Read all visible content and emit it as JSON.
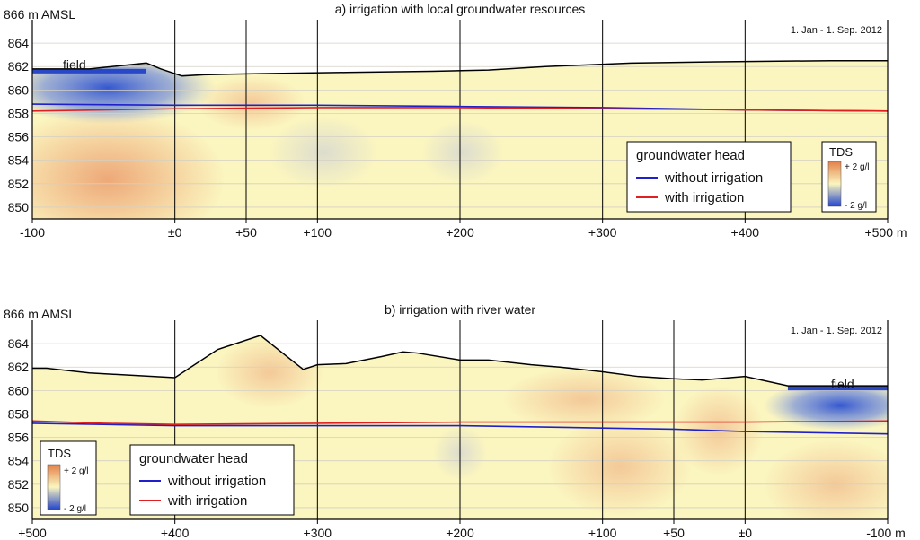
{
  "chart_data": [
    {
      "type": "line",
      "title": "a) irrigation with local groundwater resources",
      "ylabel": "866 m AMSL",
      "xunit": "m",
      "xlim": [
        -100,
        500
      ],
      "ylim": [
        849,
        866
      ],
      "y_ticks": [
        "864",
        "862",
        "860",
        "858",
        "856",
        "854",
        "852",
        "850"
      ],
      "y_tick_values": [
        864,
        862,
        860,
        858,
        856,
        854,
        852,
        850
      ],
      "x_ticks": [
        "-100",
        "±0",
        "+50",
        "+100",
        "+200",
        "+300",
        "+400",
        "+500 m"
      ],
      "x_tick_values": [
        -100,
        0,
        50,
        100,
        200,
        300,
        400,
        500
      ],
      "date_range": "1. Jan - 1. Sep. 2012",
      "field_label": "field",
      "field_x": [
        -100,
        -20
      ],
      "series": [
        {
          "name": "ground surface",
          "color": "#000000",
          "x": [
            -100,
            -60,
            -20,
            -10,
            5,
            20,
            60,
            120,
            180,
            220,
            260,
            320,
            380,
            460,
            500
          ],
          "y": [
            861.8,
            861.8,
            862.3,
            861.8,
            861.2,
            861.3,
            861.4,
            861.5,
            861.6,
            861.7,
            862.0,
            862.3,
            862.4,
            862.5,
            862.5
          ]
        },
        {
          "name": "without irrigation",
          "color": "#1f1fcc",
          "x": [
            -100,
            0,
            100,
            200,
            300,
            400,
            500
          ],
          "y": [
            858.8,
            858.7,
            858.7,
            858.6,
            858.5,
            858.3,
            858.2
          ]
        },
        {
          "name": "with irrigation",
          "color": "#e02020",
          "x": [
            -100,
            0,
            100,
            200,
            300,
            400,
            500
          ],
          "y": [
            858.2,
            858.4,
            858.5,
            858.5,
            858.4,
            858.3,
            858.2
          ]
        }
      ],
      "legend": {
        "title": "groundwater head",
        "entries": [
          "without irrigation",
          "with irrigation"
        ],
        "placement": "bottom-right"
      },
      "colorbar": {
        "title": "TDS",
        "max_label": "+ 2 g/l",
        "min_label": "- 2 g/l",
        "high_color": "#e48048",
        "mid_color": "#fbf5bf",
        "low_color": "#2244cc"
      }
    },
    {
      "type": "line",
      "title": "b) irrigation with river water",
      "ylabel": "866 m AMSL",
      "xunit": "m",
      "xlim": [
        500,
        -100
      ],
      "ylim": [
        849,
        866
      ],
      "y_ticks": [
        "864",
        "862",
        "860",
        "858",
        "856",
        "854",
        "852",
        "850"
      ],
      "y_tick_values": [
        864,
        862,
        860,
        858,
        856,
        854,
        852,
        850
      ],
      "x_ticks": [
        "+500",
        "+400",
        "+300",
        "+200",
        "+100",
        "+50",
        "±0",
        "-100 m"
      ],
      "x_tick_values": [
        500,
        400,
        300,
        200,
        100,
        50,
        0,
        -100
      ],
      "date_range": "1. Jan - 1. Sep. 2012",
      "field_label": "field",
      "field_x": [
        -30,
        -100
      ],
      "series": [
        {
          "name": "ground surface",
          "color": "#000000",
          "x": [
            500,
            490,
            460,
            400,
            370,
            340,
            310,
            300,
            280,
            255,
            240,
            230,
            200,
            180,
            150,
            130,
            100,
            75,
            50,
            30,
            0,
            -30,
            -100
          ],
          "y": [
            861.9,
            861.9,
            861.5,
            861.1,
            863.5,
            864.7,
            861.8,
            862.2,
            862.3,
            862.9,
            863.3,
            863.2,
            862.6,
            862.6,
            862.2,
            862.0,
            861.6,
            861.2,
            861.0,
            860.9,
            861.2,
            860.4,
            860.4
          ]
        },
        {
          "name": "without irrigation",
          "color": "#1f1fcc",
          "x": [
            500,
            450,
            400,
            300,
            200,
            100,
            50,
            0,
            -100
          ],
          "y": [
            857.2,
            857.1,
            857.0,
            857.0,
            857.0,
            856.8,
            856.7,
            856.5,
            856.3
          ]
        },
        {
          "name": "with irrigation",
          "color": "#e02020",
          "x": [
            500,
            450,
            400,
            300,
            200,
            100,
            50,
            0,
            -100
          ],
          "y": [
            857.4,
            857.2,
            857.1,
            857.2,
            857.3,
            857.3,
            857.3,
            857.3,
            857.4
          ]
        }
      ],
      "legend": {
        "title": "groundwater head",
        "entries": [
          "without irrigation",
          "with irrigation"
        ],
        "placement": "bottom-left"
      },
      "colorbar": {
        "title": "TDS",
        "max_label": "+ 2 g/l",
        "min_label": "- 2 g/l",
        "high_color": "#e48048",
        "mid_color": "#fbf5bf",
        "low_color": "#2244cc"
      }
    }
  ]
}
